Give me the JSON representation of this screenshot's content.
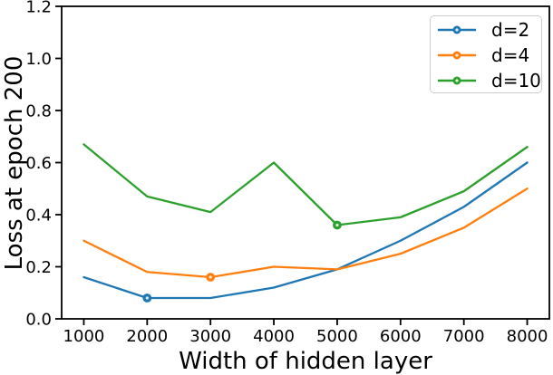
{
  "chart_data": {
    "type": "line",
    "title": "",
    "xlabel": "Width of hidden layer",
    "ylabel": "Loss at epoch 200",
    "x": [
      1000,
      2000,
      3000,
      4000,
      5000,
      6000,
      7000,
      8000
    ],
    "xlim": [
      650,
      8350
    ],
    "ylim": [
      0,
      1.2
    ],
    "xticks": [
      1000,
      2000,
      3000,
      4000,
      5000,
      6000,
      7000,
      8000
    ],
    "xtick_labels": [
      "1000",
      "2000",
      "3000",
      "4000",
      "5000",
      "6000",
      "7000",
      "8000"
    ],
    "yticks": [
      0.0,
      0.2,
      0.4,
      0.6,
      0.8,
      1.0,
      1.2
    ],
    "ytick_labels": [
      "0.0",
      "0.2",
      "0.4",
      "0.6",
      "0.8",
      "1.0",
      "1.2"
    ],
    "grid": false,
    "legend": {
      "position": "upper right"
    },
    "series": [
      {
        "name": "d=2",
        "color": "#1f77b4",
        "marker": "o",
        "marker_at_x": 2000,
        "values": [
          0.16,
          0.08,
          0.08,
          0.12,
          0.19,
          0.3,
          0.43,
          0.6
        ]
      },
      {
        "name": "d=4",
        "color": "#ff7f0e",
        "marker": "o",
        "marker_at_x": 3000,
        "values": [
          0.3,
          0.18,
          0.16,
          0.2,
          0.19,
          0.25,
          0.35,
          0.5
        ]
      },
      {
        "name": "d=10",
        "color": "#2ca02c",
        "marker": "o",
        "marker_at_x": 5000,
        "values": [
          0.67,
          0.47,
          0.41,
          0.6,
          0.36,
          0.39,
          0.49,
          0.66
        ]
      }
    ],
    "axis_color": "#000000",
    "background_color": "#ffffff"
  }
}
